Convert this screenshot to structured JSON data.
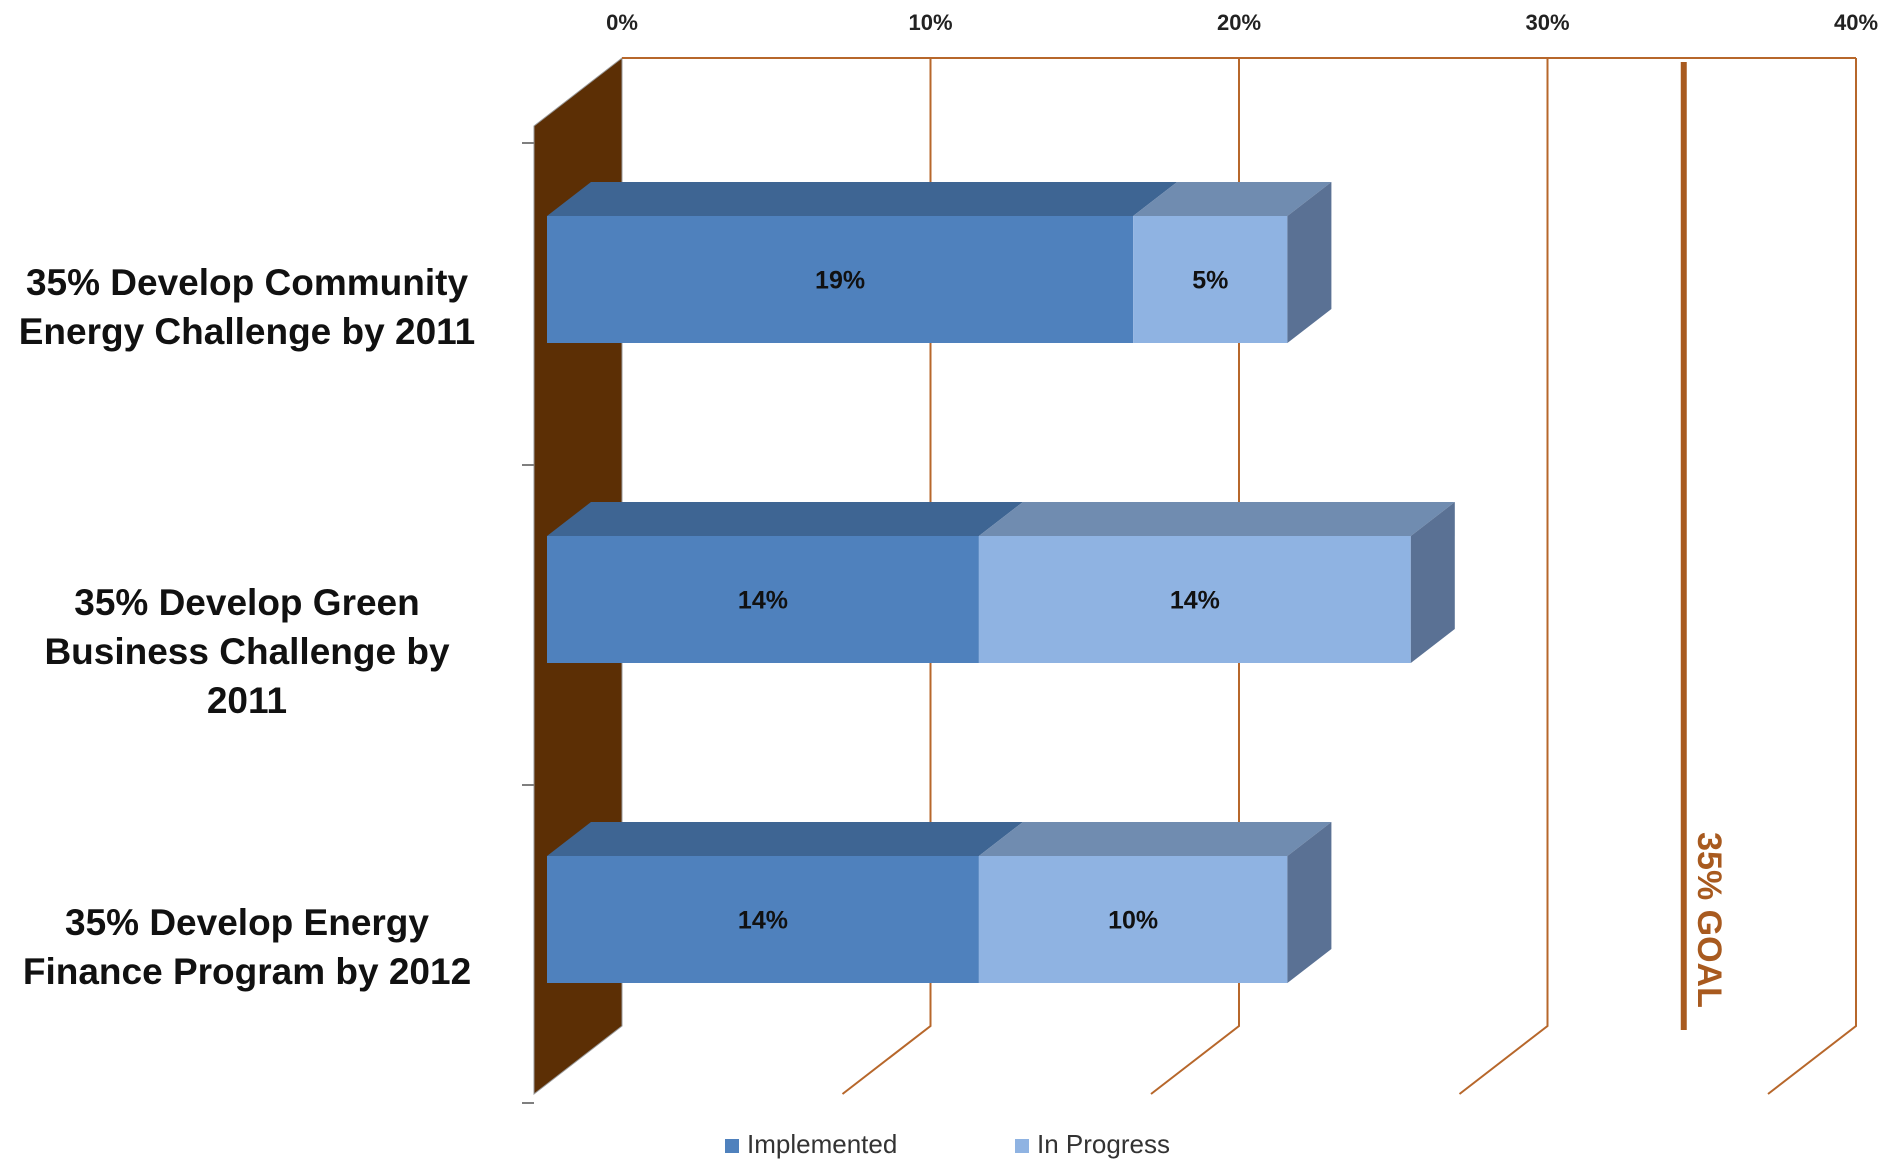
{
  "chart_data": {
    "type": "bar",
    "orientation": "horizontal",
    "stacked": true,
    "style": "3d",
    "categories": [
      {
        "label": "35% Develop Community Energy Challenge by 2011",
        "lines": [
          "35% Develop Community",
          "Energy Challenge by 2011"
        ]
      },
      {
        "label": "35% Develop Green Business Challenge by 2011",
        "lines": [
          "35% Develop Green",
          "Business Challenge by 2011"
        ]
      },
      {
        "label": "35% Develop Energy Finance Program by 2012",
        "lines": [
          "35% Develop Energy",
          "Finance Program by 2012"
        ]
      }
    ],
    "series": [
      {
        "name": "Implemented",
        "values": [
          19,
          14,
          14
        ],
        "labels": [
          "19%",
          "14%",
          "14%"
        ],
        "color": "#4F81BD"
      },
      {
        "name": "In Progress",
        "values": [
          5,
          14,
          10
        ],
        "labels": [
          "5%",
          "14%",
          "10%"
        ],
        "color": "#8FB3E2"
      }
    ],
    "x_axis": {
      "min": 0,
      "max": 40,
      "ticks": [
        0,
        10,
        20,
        30,
        40
      ],
      "tick_labels": [
        "0%",
        "10%",
        "20%",
        "30%",
        "40%"
      ],
      "position": "top",
      "grid": true,
      "grid_color": "#B7672B"
    },
    "goal_line": {
      "value": 35,
      "label": "35% GOAL",
      "color": "#A85A1F"
    },
    "wall_color": "#5C2F05",
    "legend": {
      "position": "bottom",
      "entries": [
        "Implemented",
        "In Progress"
      ]
    }
  }
}
